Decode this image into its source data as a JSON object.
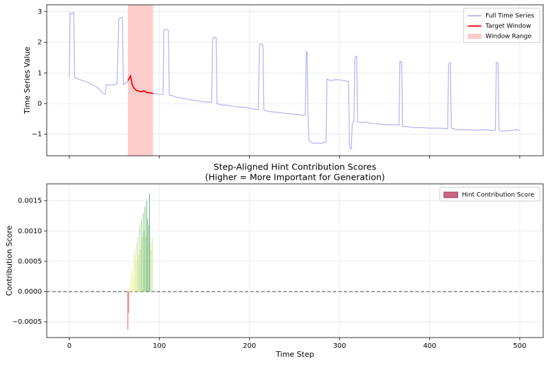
{
  "chart_data": [
    {
      "type": "line",
      "ylabel": "Time Series Value",
      "xlim": [
        -25,
        526
      ],
      "ylim": [
        -1.7,
        3.22
      ],
      "xticks": [
        0,
        100,
        200,
        300,
        400,
        500
      ],
      "xtick_labels": false,
      "yticks": [
        {
          "value": -1,
          "label": "−1"
        },
        0,
        1,
        2,
        3
      ],
      "grid": true,
      "legend": "upper right",
      "series": [
        {
          "name": "Full Time Series",
          "color": "#b0b0f6",
          "x": [
            0,
            1,
            3,
            5,
            6,
            10,
            15,
            20,
            25,
            30,
            35,
            38,
            40,
            41,
            45,
            50,
            53,
            55,
            57,
            59,
            60,
            63,
            65,
            68,
            70,
            72,
            75,
            78,
            80,
            83,
            86,
            90,
            93,
            96,
            100,
            104,
            105,
            108,
            110,
            111,
            115,
            120,
            125,
            130,
            135,
            140,
            145,
            150,
            155,
            158,
            159,
            161,
            163,
            164,
            170,
            175,
            180,
            185,
            190,
            195,
            200,
            205,
            210,
            211,
            213,
            215,
            216,
            220,
            225,
            230,
            235,
            240,
            245,
            250,
            255,
            260,
            262,
            263,
            264,
            265,
            266,
            270,
            275,
            280,
            285,
            286,
            290,
            295,
            300,
            305,
            310,
            311,
            313,
            314,
            316,
            317,
            319,
            320,
            325,
            330,
            335,
            340,
            345,
            350,
            355,
            360,
            366,
            367,
            369,
            370,
            375,
            380,
            390,
            400,
            410,
            420,
            421,
            423,
            424,
            430,
            440,
            450,
            460,
            470,
            473,
            474,
            476,
            477,
            480,
            490,
            495,
            500
          ],
          "values": [
            0.85,
            2.95,
            2.92,
            2.98,
            0.85,
            0.8,
            0.75,
            0.7,
            0.62,
            0.55,
            0.42,
            0.32,
            0.3,
            0.62,
            0.6,
            0.62,
            0.65,
            2.75,
            2.8,
            2.8,
            0.62,
            0.68,
            0.72,
            0.9,
            0.6,
            0.5,
            0.42,
            0.4,
            0.38,
            0.42,
            0.36,
            0.35,
            0.33,
            0.32,
            0.3,
            0.3,
            2.4,
            2.42,
            2.38,
            0.28,
            0.25,
            0.2,
            0.18,
            0.15,
            0.12,
            0.1,
            0.08,
            0.05,
            0.05,
            0.04,
            2.1,
            2.17,
            2.15,
            0.0,
            -0.05,
            -0.05,
            -0.08,
            -0.1,
            -0.12,
            -0.12,
            -0.15,
            -0.18,
            -0.2,
            1.9,
            1.95,
            1.9,
            -0.22,
            -0.25,
            -0.27,
            -0.28,
            -0.3,
            -0.32,
            -0.33,
            -0.35,
            -0.37,
            -0.38,
            -0.35,
            1.7,
            1.65,
            -0.4,
            -1.2,
            -1.3,
            -1.28,
            -1.3,
            -1.25,
            0.8,
            0.75,
            0.78,
            0.77,
            0.75,
            0.72,
            -1.4,
            -1.48,
            -0.7,
            -0.55,
            1.5,
            1.55,
            -0.6,
            -0.62,
            -0.6,
            -0.65,
            -0.65,
            -0.68,
            -0.68,
            -0.7,
            -0.68,
            -0.7,
            1.38,
            1.35,
            -0.75,
            -0.75,
            -0.78,
            -0.78,
            -0.8,
            -0.8,
            -0.82,
            1.3,
            1.33,
            -0.8,
            -0.85,
            -0.85,
            -0.87,
            -0.85,
            -0.88,
            -0.85,
            1.35,
            1.32,
            -0.85,
            -0.9,
            -0.88,
            -0.85,
            -0.87
          ]
        },
        {
          "name": "Target Window",
          "color": "#ff0000",
          "x": [
            65,
            67,
            68,
            70,
            72,
            75,
            78,
            80,
            83,
            86,
            90,
            93
          ],
          "values": [
            0.75,
            0.85,
            0.9,
            0.6,
            0.5,
            0.42,
            0.4,
            0.38,
            0.42,
            0.36,
            0.35,
            0.33
          ]
        }
      ],
      "spans": [
        {
          "name": "Window Range",
          "color": "#ffcccc",
          "x": [
            65,
            93
          ]
        }
      ]
    },
    {
      "type": "bar",
      "title": [
        "Step-Aligned Hint Contribution Scores",
        "(Higher = More Important for Generation)"
      ],
      "xlabel": "Time Step",
      "ylabel": "Contribution Score",
      "xlim": [
        -25,
        526
      ],
      "ylim": [
        -0.00076,
        0.00178
      ],
      "xticks": [
        0,
        100,
        200,
        300,
        400,
        500
      ],
      "yticks": [
        {
          "value": -0.0005,
          "label": "−0.0005"
        },
        {
          "value": 0,
          "label": "0.0000"
        },
        0.0005,
        {
          "value": 0.001,
          "label": "0.0010"
        },
        0.0015
      ],
      "grid": true,
      "legend": "upper right",
      "reference_line": 0,
      "name": "Hint Contribution Score",
      "color": "#c44e6e",
      "bar_width": 0.8,
      "x": [
        65,
        66,
        67,
        68,
        69,
        70,
        71,
        72,
        73,
        74,
        75,
        76,
        77,
        78,
        79,
        80,
        81,
        82,
        83,
        84,
        85,
        86,
        87,
        88,
        89,
        90,
        91,
        92
      ],
      "values": [
        -0.00063,
        -0.00035,
        0.0001,
        0.0002,
        0.00035,
        0.0004,
        0.0003,
        0.0006,
        0.0007,
        0.0005,
        0.0008,
        0.0009,
        0.0006,
        0.0011,
        0.0007,
        0.0012,
        0.0009,
        0.0013,
        0.001,
        0.0014,
        0.0009,
        0.0015,
        0.0012,
        0.0011,
        0.00162,
        0.0008,
        0.0007,
        0.0009
      ],
      "colors": [
        "#d73027",
        "#e0533a",
        "#fbf3a8",
        "#f7f5a0",
        "#f2f59c",
        "#eef59a",
        "#f3f59c",
        "#e3f298",
        "#cfe990",
        "#e8f39a",
        "#c7e68c",
        "#b6de80",
        "#cfe990",
        "#96d07a",
        "#c2e48a",
        "#7fc474",
        "#b6de80",
        "#6bba6c",
        "#a6d67d",
        "#52a863",
        "#b6de80",
        "#40995a",
        "#6bba6c",
        "#7fc474",
        "#2e8b50",
        "#c7e68c",
        "#cfe990",
        "#b6de80"
      ]
    }
  ]
}
